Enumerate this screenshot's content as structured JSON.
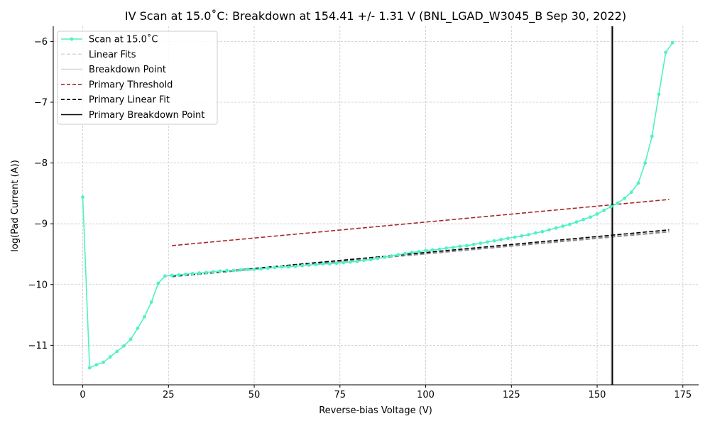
{
  "chart_data": {
    "type": "line",
    "title": "IV Scan at 15.0$^\\circ$C: Breakdown at 154.41 +/- 1.31 V (BNL_LGAD_W3045_B Sep 30, 2022)",
    "title_display": "IV Scan at 15.0˚C: Breakdown at 154.41 +/- 1.31 V (BNL_LGAD_W3045_B Sep 30, 2022)",
    "xlabel": "Reverse-bias Voltage (V)",
    "ylabel": "log(Pad Current (A))",
    "xlim": [
      -8.6,
      179.6
    ],
    "ylim": [
      -11.65,
      -5.75
    ],
    "xticks": [
      0,
      25,
      50,
      75,
      100,
      125,
      150,
      175
    ],
    "yticks": [
      -11,
      -10,
      -9,
      -8,
      -7,
      -6
    ],
    "xtick_labels": [
      "0",
      "25",
      "50",
      "75",
      "100",
      "125",
      "150",
      "175"
    ],
    "ytick_labels": [
      "−11",
      "−10",
      "−9",
      "−8",
      "−7",
      "−6"
    ],
    "grid": true,
    "legend_position": "top-left",
    "series": [
      {
        "name": "Scan at 15.0˚C",
        "role": "scan",
        "color": "#4ef2c4",
        "x": [
          0,
          2,
          4,
          6,
          8,
          10,
          12,
          14,
          16,
          18,
          20,
          22,
          24,
          26,
          28,
          30,
          32,
          34,
          36,
          38,
          40,
          42,
          44,
          46,
          48,
          50,
          52,
          54,
          56,
          58,
          60,
          62,
          64,
          66,
          68,
          70,
          72,
          74,
          76,
          78,
          80,
          82,
          84,
          86,
          88,
          90,
          92,
          94,
          96,
          98,
          100,
          102,
          104,
          106,
          108,
          110,
          112,
          114,
          116,
          118,
          120,
          122,
          124,
          126,
          128,
          130,
          132,
          134,
          136,
          138,
          140,
          142,
          144,
          146,
          148,
          150,
          152,
          154,
          156,
          158,
          160,
          162,
          164,
          166,
          168,
          170,
          172
        ],
        "y": [
          -8.56,
          -11.37,
          -11.32,
          -11.28,
          -11.19,
          -11.1,
          -11.01,
          -10.9,
          -10.72,
          -10.53,
          -10.29,
          -9.98,
          -9.86,
          -9.85,
          -9.84,
          -9.83,
          -9.82,
          -9.81,
          -9.8,
          -9.79,
          -9.78,
          -9.77,
          -9.77,
          -9.76,
          -9.75,
          -9.75,
          -9.74,
          -9.73,
          -9.72,
          -9.71,
          -9.71,
          -9.7,
          -9.69,
          -9.68,
          -9.67,
          -9.66,
          -9.66,
          -9.65,
          -9.64,
          -9.63,
          -9.62,
          -9.6,
          -9.59,
          -9.57,
          -9.55,
          -9.53,
          -9.51,
          -9.49,
          -9.47,
          -9.46,
          -9.44,
          -9.43,
          -9.42,
          -9.4,
          -9.39,
          -9.37,
          -9.36,
          -9.34,
          -9.32,
          -9.3,
          -9.28,
          -9.26,
          -9.24,
          -9.22,
          -9.2,
          -9.18,
          -9.15,
          -9.13,
          -9.1,
          -9.07,
          -9.04,
          -9.01,
          -8.97,
          -8.93,
          -8.89,
          -8.84,
          -8.78,
          -8.72,
          -8.66,
          -8.58,
          -8.48,
          -8.33,
          -8.0,
          -7.56,
          -6.87,
          -6.18,
          -6.02
        ]
      },
      {
        "name": "Primary Threshold",
        "role": "threshold",
        "color": "#a52a2a",
        "style": "dashed",
        "x": [
          26,
          171
        ],
        "y": [
          -9.36,
          -8.6
        ]
      },
      {
        "name": "Primary Linear Fit",
        "role": "fit",
        "color": "#000000",
        "style": "dashed",
        "x": [
          26,
          171
        ],
        "y": [
          -9.86,
          -9.1
        ]
      },
      {
        "name": "Linear Fits",
        "role": "linear-fits",
        "color": "#8a8a8a",
        "style": "dashed",
        "x": [
          26,
          171
        ],
        "y": [
          -9.87,
          -9.13
        ]
      }
    ],
    "breakdown": {
      "name": "Primary Breakdown Point",
      "value": 154.41,
      "uncertainty": 1.31,
      "color": "#000000"
    },
    "legend": [
      {
        "label": "Scan at 15.0˚C",
        "color": "#4ef2c4",
        "style": "solid-marker"
      },
      {
        "label": "Linear Fits",
        "color": "#d8d8d8",
        "style": "dashed"
      },
      {
        "label": "Breakdown Point",
        "color": "#d8d8d8",
        "style": "solid"
      },
      {
        "label": "Primary Threshold",
        "color": "#a52a2a",
        "style": "dashed"
      },
      {
        "label": "Primary Linear Fit",
        "color": "#000000",
        "style": "dashed"
      },
      {
        "label": "Primary Breakdown Point",
        "color": "#000000",
        "style": "solid"
      }
    ]
  }
}
